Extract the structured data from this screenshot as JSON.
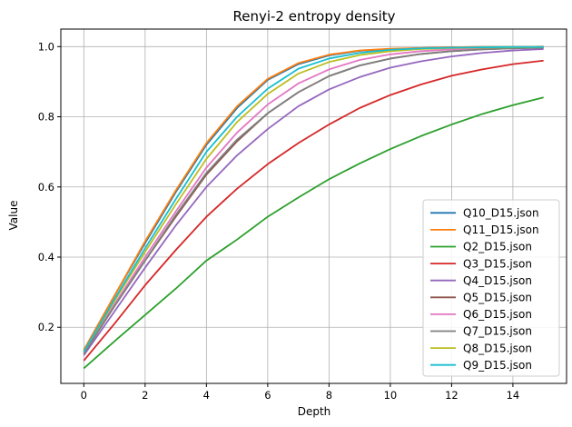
{
  "chart_data": {
    "type": "line",
    "title": "Renyi-2 entropy density",
    "xlabel": "Depth",
    "ylabel": "Value",
    "xlim": [
      -0.75,
      15.75
    ],
    "ylim": [
      0.04,
      1.05
    ],
    "xticks": [
      0,
      2,
      4,
      6,
      8,
      10,
      12,
      14
    ],
    "yticks": [
      0.2,
      0.4,
      0.6,
      0.8,
      1.0
    ],
    "xtick_labels": [
      "0",
      "2",
      "4",
      "6",
      "8",
      "10",
      "12",
      "14"
    ],
    "ytick_labels": [
      "0.2",
      "0.4",
      "0.6",
      "0.8",
      "1.0"
    ],
    "grid": true,
    "legend_position": "bottom-right",
    "x": [
      0,
      1,
      2,
      3,
      4,
      5,
      6,
      7,
      8,
      9,
      10,
      11,
      12,
      13,
      14,
      15
    ],
    "series": [
      {
        "name": "Q10_D15.json",
        "color": "#1f77b4",
        "values": [
          0.135,
          0.29,
          0.44,
          0.585,
          0.72,
          0.825,
          0.905,
          0.95,
          0.975,
          0.988,
          0.993,
          0.996,
          0.998,
          0.999,
          0.999,
          1.0
        ]
      },
      {
        "name": "Q11_D15.json",
        "color": "#ff7f0e",
        "values": [
          0.135,
          0.29,
          0.445,
          0.59,
          0.725,
          0.83,
          0.908,
          0.953,
          0.977,
          0.989,
          0.994,
          0.996,
          0.998,
          0.999,
          0.999,
          1.0
        ]
      },
      {
        "name": "Q2_D15.json",
        "color": "#2ca02c",
        "values": [
          0.083,
          0.16,
          0.235,
          0.31,
          0.39,
          0.45,
          0.515,
          0.57,
          0.622,
          0.667,
          0.708,
          0.745,
          0.778,
          0.808,
          0.833,
          0.855
        ]
      },
      {
        "name": "Q3_D15.json",
        "color": "#d62728",
        "values": [
          0.105,
          0.21,
          0.32,
          0.42,
          0.515,
          0.595,
          0.665,
          0.725,
          0.778,
          0.825,
          0.862,
          0.892,
          0.917,
          0.935,
          0.95,
          0.96
        ]
      },
      {
        "name": "Q4_D15.json",
        "color": "#9467bd",
        "values": [
          0.12,
          0.245,
          0.37,
          0.49,
          0.6,
          0.69,
          0.765,
          0.83,
          0.878,
          0.913,
          0.94,
          0.958,
          0.972,
          0.982,
          0.989,
          0.993
        ]
      },
      {
        "name": "Q5_D15.json",
        "color": "#8c564b",
        "values": [
          0.125,
          0.26,
          0.39,
          0.515,
          0.635,
          0.73,
          0.81,
          0.87,
          0.916,
          0.946,
          0.966,
          0.979,
          0.987,
          0.992,
          0.995,
          0.997
        ]
      },
      {
        "name": "Q6_D15.json",
        "color": "#e377c2",
        "values": [
          0.13,
          0.265,
          0.4,
          0.53,
          0.655,
          0.755,
          0.835,
          0.895,
          0.935,
          0.962,
          0.978,
          0.987,
          0.992,
          0.995,
          0.997,
          0.998
        ]
      },
      {
        "name": "Q7_D15.json",
        "color": "#7f7f7f",
        "values": [
          0.125,
          0.26,
          0.39,
          0.52,
          0.64,
          0.735,
          0.81,
          0.87,
          0.916,
          0.946,
          0.966,
          0.979,
          0.987,
          0.992,
          0.995,
          0.997
        ]
      },
      {
        "name": "Q8_D15.json",
        "color": "#bcbd22",
        "values": [
          0.13,
          0.275,
          0.415,
          0.55,
          0.68,
          0.785,
          0.865,
          0.923,
          0.956,
          0.976,
          0.987,
          0.993,
          0.996,
          0.997,
          0.998,
          0.999
        ]
      },
      {
        "name": "Q9_D15.json",
        "color": "#17becf",
        "values": [
          0.13,
          0.28,
          0.425,
          0.565,
          0.7,
          0.8,
          0.88,
          0.937,
          0.966,
          0.982,
          0.991,
          0.995,
          0.997,
          0.998,
          0.999,
          0.999
        ]
      }
    ]
  }
}
